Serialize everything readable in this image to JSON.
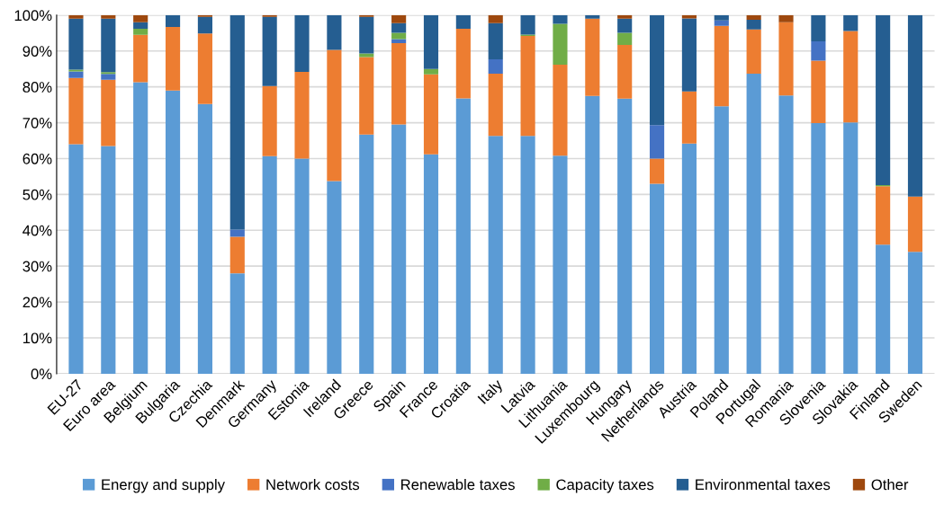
{
  "chart_data": {
    "type": "bar",
    "stacked": true,
    "categories": [
      "EU-27",
      "Euro area",
      "Belgium",
      "Bulgaria",
      "Czechia",
      "Denmark",
      "Germany",
      "Estonia",
      "Ireland",
      "Greece",
      "Spain",
      "France",
      "Croatia",
      "Italy",
      "Latvia",
      "Lithuania",
      "Luxembourg",
      "Hungary",
      "Netherlands",
      "Austria",
      "Poland",
      "Portugal",
      "Romania",
      "Slovenia",
      "Slovakia",
      "Finland",
      "Sweden"
    ],
    "series": [
      {
        "name": "Energy and supply",
        "color": "#5b9bd5",
        "values": [
          64,
          63.5,
          81.3,
          79,
          75.2,
          28,
          60.7,
          60,
          53.7,
          66.7,
          69.5,
          61.2,
          76.8,
          66.3,
          66.3,
          60.8,
          77.5,
          76.7,
          53,
          64.2,
          74.6,
          83.7,
          77.6,
          69.9,
          70.1,
          36,
          34
        ]
      },
      {
        "name": "Network costs",
        "color": "#ed7d31",
        "values": [
          18.5,
          18.5,
          13.2,
          17.7,
          19.7,
          10.2,
          19.5,
          24.2,
          36.6,
          21.6,
          22.7,
          22.3,
          19.4,
          17.4,
          27.9,
          25.4,
          21.5,
          15,
          7,
          14.5,
          22.4,
          12.3,
          20.4,
          17.4,
          25.5,
          16.3,
          15.4
        ]
      },
      {
        "name": "Renewable taxes",
        "color": "#4472c4",
        "values": [
          1.8,
          1.6,
          0,
          0,
          0,
          2,
          0,
          0,
          0,
          0,
          1.1,
          0,
          0,
          4,
          0,
          0,
          0,
          0,
          9.3,
          0,
          1.5,
          0,
          0,
          5.4,
          0,
          0,
          0
        ]
      },
      {
        "name": "Capacity taxes",
        "color": "#70ad47",
        "values": [
          0.5,
          0.5,
          1.7,
          0,
          0,
          0,
          0,
          0,
          0,
          1,
          1.8,
          1.5,
          0,
          0,
          0.4,
          11.4,
          0,
          3.4,
          0,
          0,
          0,
          0,
          0,
          0,
          0,
          0.3,
          0
        ]
      },
      {
        "name": "Environmental taxes",
        "color": "#255e91",
        "values": [
          14.2,
          14.9,
          1.8,
          3.3,
          4.6,
          59.8,
          19.3,
          15.8,
          9.7,
          10.2,
          2.7,
          15,
          3.8,
          10.1,
          5.4,
          2.4,
          1,
          3.9,
          30.7,
          20.4,
          1.5,
          2.7,
          0,
          7.3,
          4.4,
          47.4,
          50.6
        ]
      },
      {
        "name": "Other",
        "color": "#9e480e",
        "values": [
          1,
          1,
          2,
          0,
          0.5,
          0,
          0.5,
          0,
          0,
          0.5,
          2.2,
          0,
          0,
          2.2,
          0,
          0,
          0,
          1,
          0,
          0.9,
          0,
          1.3,
          2,
          0,
          0,
          0,
          0
        ]
      }
    ],
    "ylim": [
      0,
      100
    ],
    "yticks": [
      {
        "value": 0,
        "label": "0%"
      },
      {
        "value": 10,
        "label": "10%"
      },
      {
        "value": 20,
        "label": "20%"
      },
      {
        "value": 30,
        "label": "30%"
      },
      {
        "value": 40,
        "label": "40%"
      },
      {
        "value": 50,
        "label": "50%"
      },
      {
        "value": 60,
        "label": "60%"
      },
      {
        "value": 70,
        "label": "70%"
      },
      {
        "value": 80,
        "label": "80%"
      },
      {
        "value": 90,
        "label": "90%"
      },
      {
        "value": 100,
        "label": "100%"
      }
    ],
    "grid": "y",
    "legend": "bottom"
  }
}
